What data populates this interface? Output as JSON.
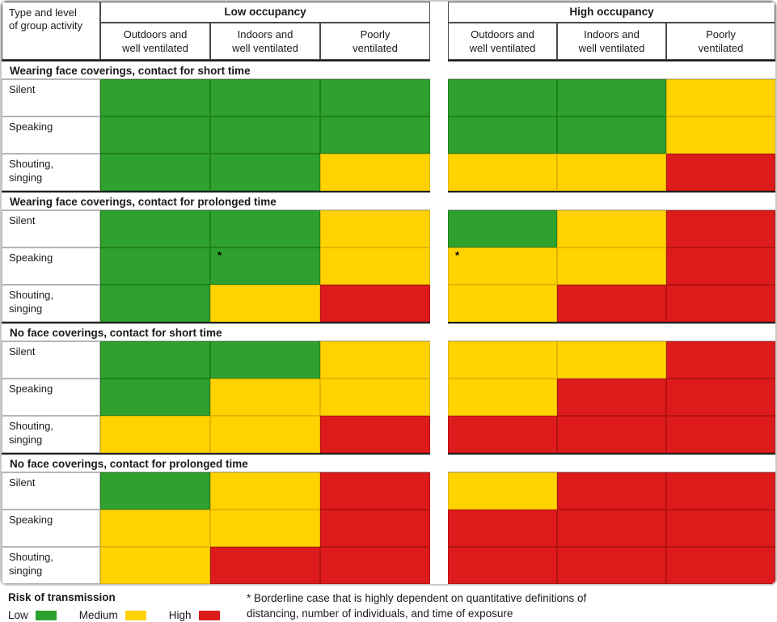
{
  "header": {
    "corner_label": "Type and level\nof group activity",
    "groups": [
      {
        "label": "Low occupancy",
        "columns": [
          "Outdoors and\nwell ventilated",
          "Indoors and\nwell ventilated",
          "Poorly\nventilated"
        ]
      },
      {
        "label": "High occupancy",
        "columns": [
          "Outdoors and\nwell ventilated",
          "Indoors and\nwell ventilated",
          "Poorly\nventilated"
        ]
      }
    ]
  },
  "colors": {
    "Low": "#2fa12f",
    "Medium": "#ffd200",
    "High": "#dd1b1b"
  },
  "cell_borders": {
    "Low": "#1e811e",
    "Medium": "#dfb600",
    "High": "#b31313"
  },
  "sections": [
    {
      "title": "Wearing face coverings, contact for short time",
      "rows": [
        {
          "label": "Silent",
          "low": [
            "Low",
            "Low",
            "Low"
          ],
          "high": [
            "Low",
            "Low",
            "Medium"
          ]
        },
        {
          "label": "Speaking",
          "low": [
            "Low",
            "Low",
            "Low"
          ],
          "high": [
            "Low",
            "Low",
            "Medium"
          ]
        },
        {
          "label": "Shouting,\nsinging",
          "low": [
            "Low",
            "Low",
            "Medium"
          ],
          "high": [
            "Medium",
            "Medium",
            "High"
          ]
        }
      ]
    },
    {
      "title": "Wearing face coverings, contact for prolonged time",
      "rows": [
        {
          "label": "Silent",
          "low": [
            "Low",
            "Low",
            "Medium"
          ],
          "high": [
            "Low",
            "Medium",
            "High"
          ]
        },
        {
          "label": "Speaking",
          "low": [
            "Low",
            "Low*",
            "Medium"
          ],
          "high": [
            "Medium*",
            "Medium",
            "High"
          ]
        },
        {
          "label": "Shouting,\nsinging",
          "low": [
            "Low",
            "Medium",
            "High"
          ],
          "high": [
            "Medium",
            "High",
            "High"
          ]
        }
      ]
    },
    {
      "title": "No face coverings, contact for short time",
      "rows": [
        {
          "label": "Silent",
          "low": [
            "Low",
            "Low",
            "Medium"
          ],
          "high": [
            "Medium",
            "Medium",
            "High"
          ]
        },
        {
          "label": "Speaking",
          "low": [
            "Low",
            "Medium",
            "Medium"
          ],
          "high": [
            "Medium",
            "High",
            "High"
          ]
        },
        {
          "label": "Shouting,\nsinging",
          "low": [
            "Medium",
            "Medium",
            "High"
          ],
          "high": [
            "High",
            "High",
            "High"
          ]
        }
      ]
    },
    {
      "title": "No face coverings, contact for prolonged time",
      "rows": [
        {
          "label": "Silent",
          "low": [
            "Low",
            "Medium",
            "High"
          ],
          "high": [
            "Medium",
            "High",
            "High"
          ]
        },
        {
          "label": "Speaking",
          "low": [
            "Medium",
            "Medium",
            "High"
          ],
          "high": [
            "High",
            "High",
            "High"
          ]
        },
        {
          "label": "Shouting,\nsinging",
          "low": [
            "Medium",
            "High",
            "High"
          ],
          "high": [
            "High",
            "High",
            "High"
          ]
        }
      ]
    }
  ],
  "legend": {
    "title": "Risk of transmission",
    "items": [
      {
        "label": "Low",
        "color": "#2fa12f"
      },
      {
        "label": "Medium",
        "color": "#ffd200"
      },
      {
        "label": "High",
        "color": "#dd1b1b"
      }
    ]
  },
  "footnote": "* Borderline case that is highly dependent on quantitative definitions of distancing, number of individuals, and time of exposure",
  "chart_data": {
    "type": "heatmap",
    "title": "Risk of transmission",
    "row_group_header": "Type and level of group activity",
    "column_groups": [
      "Low occupancy",
      "High occupancy"
    ],
    "columns": [
      "Low occupancy - Outdoors and well ventilated",
      "Low occupancy - Indoors and well ventilated",
      "Low occupancy - Poorly ventilated",
      "High occupancy - Outdoors and well ventilated",
      "High occupancy - Indoors and well ventilated",
      "High occupancy - Poorly ventilated"
    ],
    "scale": [
      "Low",
      "Medium",
      "High"
    ],
    "rows": [
      {
        "section": "Wearing face coverings, contact for short time",
        "activity": "Silent",
        "values": [
          "Low",
          "Low",
          "Low",
          "Low",
          "Low",
          "Medium"
        ]
      },
      {
        "section": "Wearing face coverings, contact for short time",
        "activity": "Speaking",
        "values": [
          "Low",
          "Low",
          "Low",
          "Low",
          "Low",
          "Medium"
        ]
      },
      {
        "section": "Wearing face coverings, contact for short time",
        "activity": "Shouting, singing",
        "values": [
          "Low",
          "Low",
          "Medium",
          "Medium",
          "Medium",
          "High"
        ]
      },
      {
        "section": "Wearing face coverings, contact for prolonged time",
        "activity": "Silent",
        "values": [
          "Low",
          "Low",
          "Medium",
          "Low",
          "Medium",
          "High"
        ]
      },
      {
        "section": "Wearing face coverings, contact for prolonged time",
        "activity": "Speaking",
        "values": [
          "Low",
          "Low*",
          "Medium",
          "Medium*",
          "Medium",
          "High"
        ]
      },
      {
        "section": "Wearing face coverings, contact for prolonged time",
        "activity": "Shouting, singing",
        "values": [
          "Low",
          "Medium",
          "High",
          "Medium",
          "High",
          "High"
        ]
      },
      {
        "section": "No face coverings, contact for short time",
        "activity": "Silent",
        "values": [
          "Low",
          "Low",
          "Medium",
          "Medium",
          "Medium",
          "High"
        ]
      },
      {
        "section": "No face coverings, contact for short time",
        "activity": "Speaking",
        "values": [
          "Low",
          "Medium",
          "Medium",
          "Medium",
          "High",
          "High"
        ]
      },
      {
        "section": "No face coverings, contact for short time",
        "activity": "Shouting, singing",
        "values": [
          "Medium",
          "Medium",
          "High",
          "High",
          "High",
          "High"
        ]
      },
      {
        "section": "No face coverings, contact for prolonged time",
        "activity": "Silent",
        "values": [
          "Low",
          "Medium",
          "High",
          "Medium",
          "High",
          "High"
        ]
      },
      {
        "section": "No face coverings, contact for prolonged time",
        "activity": "Speaking",
        "values": [
          "Medium",
          "Medium",
          "High",
          "High",
          "High",
          "High"
        ]
      },
      {
        "section": "No face coverings, contact for prolonged time",
        "activity": "Shouting, singing",
        "values": [
          "Medium",
          "High",
          "High",
          "High",
          "High",
          "High"
        ]
      }
    ],
    "footnote": "* Borderline case that is highly dependent on quantitative definitions of distancing, number of individuals, and time of exposure"
  }
}
